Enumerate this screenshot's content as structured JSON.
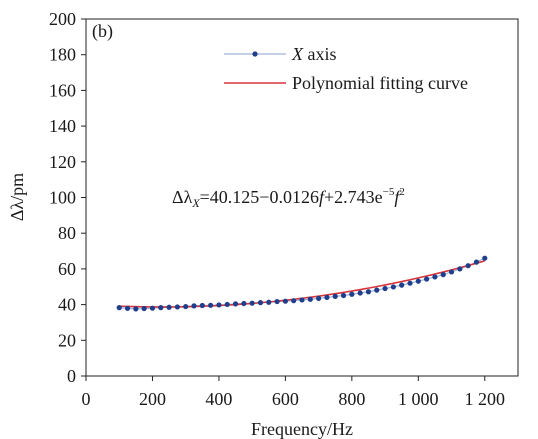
{
  "chart_data": {
    "type": "scatter",
    "panel_label": "(b)",
    "xlabel": "Frequency/Hz",
    "ylabel": "Δλ/pm",
    "xlim": [
      0,
      1300
    ],
    "ylim": [
      0,
      200
    ],
    "x_ticks": [
      0,
      200,
      400,
      600,
      800,
      1000,
      1200
    ],
    "x_tick_labels": [
      "0",
      "200",
      "400",
      "600",
      "800",
      "1 000",
      "1 200"
    ],
    "y_ticks": [
      0,
      20,
      40,
      60,
      80,
      100,
      120,
      140,
      160,
      180,
      200
    ],
    "y_tick_labels": [
      "0",
      "20",
      "40",
      "60",
      "80",
      "100",
      "120",
      "140",
      "160",
      "180",
      "200"
    ],
    "grid": false,
    "legend_position": "top-center",
    "series": [
      {
        "name": "X axis",
        "name_parts": [
          "X",
          " axis"
        ],
        "kind": "markers-line",
        "color": "#1f3f8c",
        "line_color": "#9fb3d9",
        "x": [
          100,
          125,
          150,
          175,
          200,
          225,
          250,
          275,
          300,
          325,
          350,
          375,
          400,
          425,
          450,
          475,
          500,
          525,
          550,
          575,
          600,
          625,
          650,
          675,
          700,
          725,
          750,
          775,
          800,
          825,
          850,
          875,
          900,
          925,
          950,
          975,
          1000,
          1025,
          1050,
          1075,
          1100,
          1125,
          1150,
          1175,
          1200
        ],
        "y": [
          38.3,
          37.9,
          37.6,
          37.8,
          38.0,
          38.3,
          38.5,
          38.7,
          38.9,
          39.3,
          39.5,
          39.6,
          39.8,
          40.1,
          40.4,
          40.6,
          40.8,
          41.1,
          41.3,
          41.7,
          41.9,
          42.2,
          42.6,
          43.0,
          43.5,
          44.0,
          44.6,
          45.1,
          45.8,
          46.5,
          47.2,
          48.1,
          49.0,
          49.9,
          50.9,
          52.0,
          53.1,
          54.3,
          55.5,
          56.8,
          58.3,
          60.0,
          61.8,
          63.8,
          66.0
        ]
      },
      {
        "name": "Polynomial fitting curve",
        "kind": "line",
        "color": "#d8343a",
        "coefficients": [
          40.125,
          -0.0126,
          2.743e-05
        ],
        "x_range": [
          100,
          1200
        ]
      }
    ],
    "annotation": {
      "parts": [
        "Δλ",
        "X",
        "=40.125−0.0126",
        "f",
        "+2.743e",
        "−5",
        "f",
        "2"
      ]
    }
  }
}
